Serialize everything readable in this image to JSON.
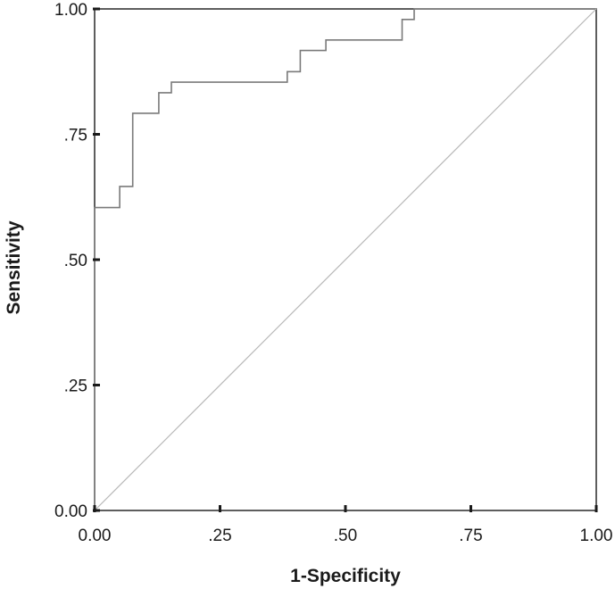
{
  "chart_data": {
    "type": "line",
    "title": "",
    "xlabel": "1-Specificity",
    "ylabel": "Sensitivity",
    "xlim": [
      0,
      1
    ],
    "ylim": [
      0,
      1
    ],
    "x_ticks": [
      0,
      0.25,
      0.5,
      0.75,
      1
    ],
    "y_ticks": [
      0,
      0.25,
      0.5,
      0.75,
      1
    ],
    "x_tick_labels": [
      "0.00",
      ".25",
      ".50",
      ".75",
      "1.00"
    ],
    "y_tick_labels": [
      "0.00",
      ".25",
      ".50",
      ".75",
      "1.00"
    ],
    "grid": false,
    "legend": "none",
    "series": [
      {
        "role": "roc-curve",
        "color": "#7a7a7a",
        "step": true,
        "x": [
          0.0,
          0.0,
          0.05,
          0.05,
          0.076,
          0.076,
          0.128,
          0.128,
          0.153,
          0.153,
          0.384,
          0.384,
          0.41,
          0.41,
          0.461,
          0.461,
          0.613,
          0.613,
          0.637,
          0.637,
          1.0
        ],
        "y": [
          0.0,
          0.604,
          0.604,
          0.646,
          0.646,
          0.792,
          0.792,
          0.833,
          0.833,
          0.854,
          0.854,
          0.875,
          0.875,
          0.917,
          0.917,
          0.938,
          0.938,
          0.979,
          0.979,
          1.0,
          1.0
        ]
      },
      {
        "role": "reference-line",
        "color": "#b8b8b8",
        "x": [
          0,
          1
        ],
        "y": [
          0,
          1
        ]
      }
    ]
  }
}
